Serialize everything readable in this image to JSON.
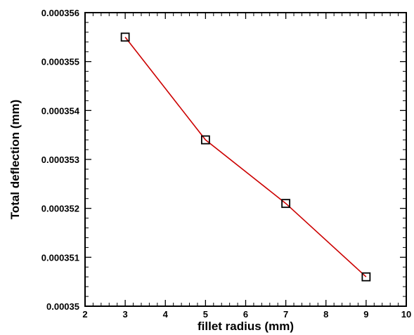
{
  "chart_data": {
    "type": "line",
    "title": "",
    "xlabel": "fillet radius (mm)",
    "ylabel": "Total deflection (mm)",
    "xlim": [
      2,
      10
    ],
    "ylim": [
      0.00035,
      0.000356
    ],
    "x_ticks": [
      "2",
      "3",
      "4",
      "5",
      "6",
      "7",
      "8",
      "9",
      "10"
    ],
    "y_ticks": [
      "0.00035",
      "0.000351",
      "0.000352",
      "0.000353",
      "0.000354",
      "0.000355",
      "0.000356"
    ],
    "grid": false,
    "legend": "none",
    "series": [
      {
        "x": [
          3,
          5,
          7,
          9
        ],
        "y": [
          0.0003555,
          0.0003534,
          0.0003521,
          0.0003506
        ],
        "line_color": "#cc0000",
        "marker": "open-square",
        "marker_color": "#000000"
      }
    ]
  }
}
